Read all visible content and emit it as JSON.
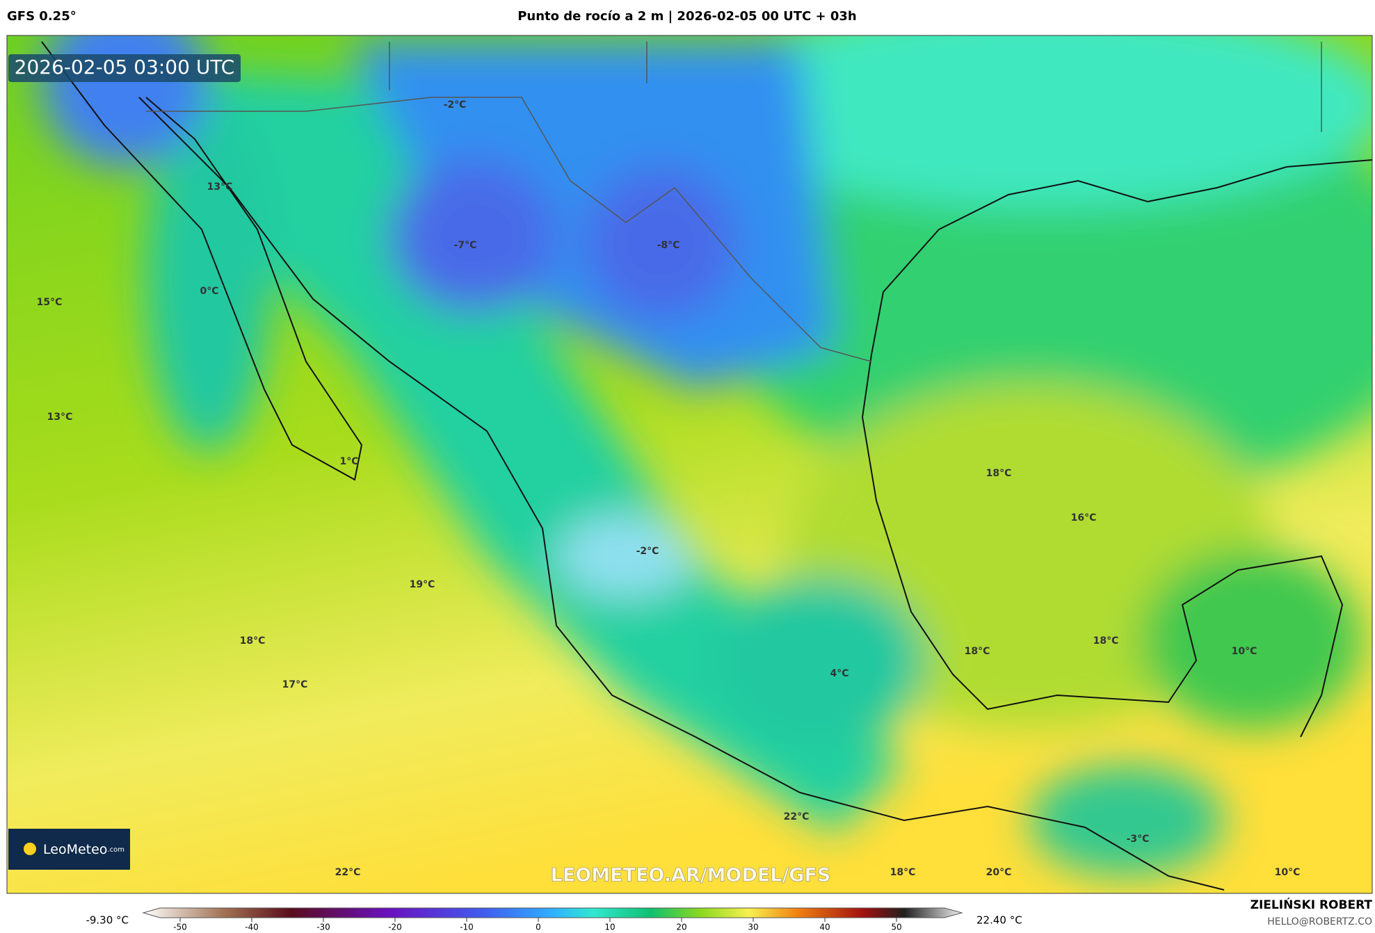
{
  "header": {
    "model": "GFS 0.25°",
    "title": "Punto de rocío a 2 m | 2026-02-05 00 UTC + 03h"
  },
  "timestamp": "2026-02-05 03:00 UTC",
  "map_labels": [
    "-2°C",
    "13°C",
    "-7°C",
    "-8°C",
    "0°C",
    "15°C",
    "13°C",
    "1°C",
    "18°C",
    "16°C",
    "-2°C",
    "19°C",
    "18°C",
    "18°C",
    "18°C",
    "10°C",
    "4°C",
    "17°C",
    "22°C",
    "-3°C",
    "22°C",
    "18°C",
    "20°C",
    "10°C"
  ],
  "watermark": "LEOMETEO.AR/MODEL/GFS",
  "logo": {
    "name": "LeoMeteo",
    "suffix": ".com"
  },
  "colorbar": {
    "min_label": "-9.30 °C",
    "max_label": "22.40 °C",
    "xlim": [
      -50,
      50
    ],
    "ticks": [
      -50,
      -40,
      -30,
      -20,
      -10,
      0,
      10,
      20,
      30,
      40,
      50
    ]
  },
  "footer": {
    "author": "ZIELIŃSKI ROBERT",
    "email": "HELLO@ROBERTZ.CO"
  }
}
